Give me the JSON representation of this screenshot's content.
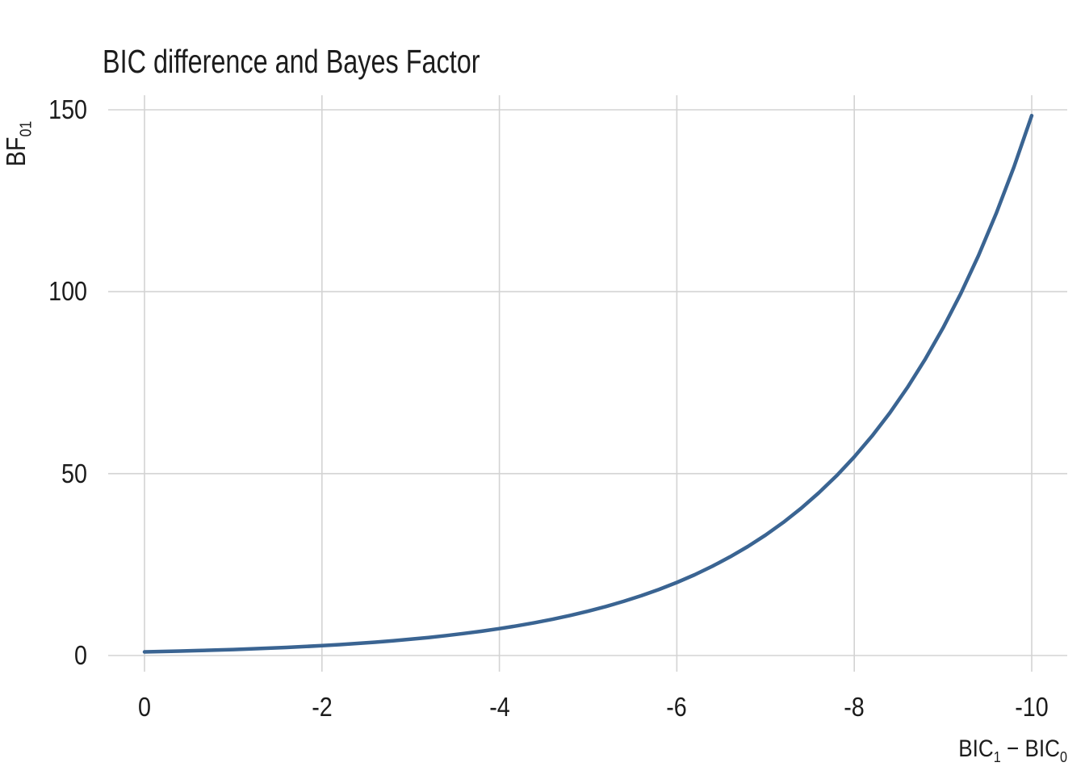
{
  "title": "BIC difference and Bayes Factor",
  "y_axis": {
    "label_base": "BF",
    "label_sub": "01",
    "tick_labels": [
      "0",
      "50",
      "100",
      "150"
    ],
    "tick_values": [
      0,
      50,
      100,
      150
    ]
  },
  "x_axis": {
    "label_base1": "BIC",
    "label_sub1": "1",
    "label_operator": " − ",
    "label_base2": "BIC",
    "label_sub2": "0",
    "tick_labels": [
      "0",
      "-2",
      "-4",
      "-6",
      "-8",
      "-10"
    ],
    "tick_values": [
      0,
      -2,
      -4,
      -6,
      -8,
      -10
    ]
  },
  "colors": {
    "line": "#3a6492",
    "grid": "#d3d3d3",
    "text": "#1c1c1c",
    "background": "#ffffff"
  },
  "chart_data": {
    "type": "line",
    "title": "BIC difference and Bayes Factor",
    "xlabel": "BIC1 − BIC0",
    "ylabel": "BF01",
    "xlim": [
      0,
      -10
    ],
    "ylim": [
      0,
      150
    ],
    "x_ticks": [
      0,
      -2,
      -4,
      -6,
      -8,
      -10
    ],
    "y_ticks": [
      0,
      50,
      100,
      150
    ],
    "grid": "major-only",
    "legend_position": "none",
    "line_color": "#3a6492",
    "line_width": 4.5,
    "x": [
      0,
      -0.2,
      -0.4,
      -0.6,
      -0.8,
      -1,
      -1.2,
      -1.4,
      -1.6,
      -1.8,
      -2,
      -2.2,
      -2.4,
      -2.6,
      -2.8,
      -3,
      -3.2,
      -3.4,
      -3.6,
      -3.8,
      -4,
      -4.2,
      -4.4,
      -4.6,
      -4.8,
      -5,
      -5.2,
      -5.4,
      -5.6,
      -5.8,
      -6,
      -6.2,
      -6.4,
      -6.6,
      -6.8,
      -7,
      -7.2,
      -7.4,
      -7.6,
      -7.8,
      -8,
      -8.2,
      -8.4,
      -8.6,
      -8.8,
      -9,
      -9.2,
      -9.4,
      -9.6,
      -9.8,
      -10
    ],
    "y": [
      1,
      1.105,
      1.221,
      1.35,
      1.492,
      1.649,
      1.822,
      2.014,
      2.226,
      2.46,
      2.718,
      3.004,
      3.32,
      3.669,
      4.055,
      4.482,
      4.953,
      5.474,
      6.05,
      6.686,
      7.389,
      8.166,
      9.025,
      9.974,
      11.023,
      12.182,
      13.464,
      14.88,
      16.445,
      18.174,
      20.086,
      22.198,
      24.533,
      27.113,
      29.964,
      33.115,
      36.598,
      40.447,
      44.701,
      49.402,
      54.598,
      60.34,
      66.686,
      73.7,
      81.451,
      90.017,
      99.484,
      109.947,
      121.51,
      134.29,
      148.413
    ]
  }
}
